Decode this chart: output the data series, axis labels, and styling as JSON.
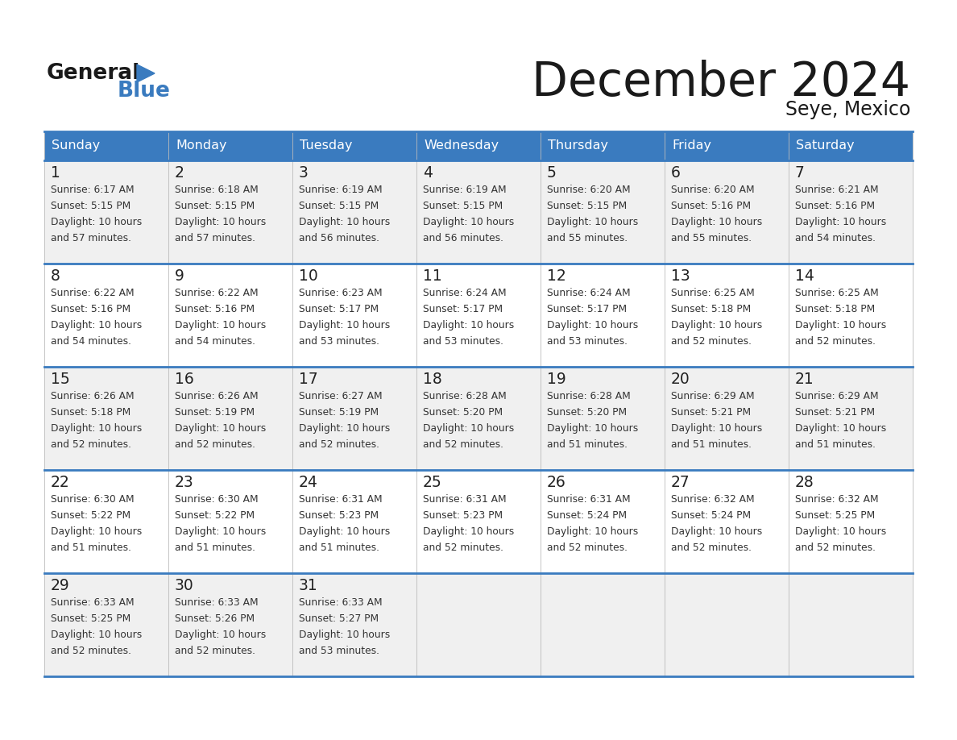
{
  "title": "December 2024",
  "subtitle": "Seye, Mexico",
  "header_color": "#3a7bbf",
  "header_text_color": "#ffffff",
  "border_color": "#2b6cb0",
  "text_color": "#333333",
  "days_of_week": [
    "Sunday",
    "Monday",
    "Tuesday",
    "Wednesday",
    "Thursday",
    "Friday",
    "Saturday"
  ],
  "weeks": [
    [
      {
        "day": 1,
        "sunrise": "6:17 AM",
        "sunset": "5:15 PM",
        "daylight_hours": 10,
        "daylight_minutes": 57
      },
      {
        "day": 2,
        "sunrise": "6:18 AM",
        "sunset": "5:15 PM",
        "daylight_hours": 10,
        "daylight_minutes": 57
      },
      {
        "day": 3,
        "sunrise": "6:19 AM",
        "sunset": "5:15 PM",
        "daylight_hours": 10,
        "daylight_minutes": 56
      },
      {
        "day": 4,
        "sunrise": "6:19 AM",
        "sunset": "5:15 PM",
        "daylight_hours": 10,
        "daylight_minutes": 56
      },
      {
        "day": 5,
        "sunrise": "6:20 AM",
        "sunset": "5:15 PM",
        "daylight_hours": 10,
        "daylight_minutes": 55
      },
      {
        "day": 6,
        "sunrise": "6:20 AM",
        "sunset": "5:16 PM",
        "daylight_hours": 10,
        "daylight_minutes": 55
      },
      {
        "day": 7,
        "sunrise": "6:21 AM",
        "sunset": "5:16 PM",
        "daylight_hours": 10,
        "daylight_minutes": 54
      }
    ],
    [
      {
        "day": 8,
        "sunrise": "6:22 AM",
        "sunset": "5:16 PM",
        "daylight_hours": 10,
        "daylight_minutes": 54
      },
      {
        "day": 9,
        "sunrise": "6:22 AM",
        "sunset": "5:16 PM",
        "daylight_hours": 10,
        "daylight_minutes": 54
      },
      {
        "day": 10,
        "sunrise": "6:23 AM",
        "sunset": "5:17 PM",
        "daylight_hours": 10,
        "daylight_minutes": 53
      },
      {
        "day": 11,
        "sunrise": "6:24 AM",
        "sunset": "5:17 PM",
        "daylight_hours": 10,
        "daylight_minutes": 53
      },
      {
        "day": 12,
        "sunrise": "6:24 AM",
        "sunset": "5:17 PM",
        "daylight_hours": 10,
        "daylight_minutes": 53
      },
      {
        "day": 13,
        "sunrise": "6:25 AM",
        "sunset": "5:18 PM",
        "daylight_hours": 10,
        "daylight_minutes": 52
      },
      {
        "day": 14,
        "sunrise": "6:25 AM",
        "sunset": "5:18 PM",
        "daylight_hours": 10,
        "daylight_minutes": 52
      }
    ],
    [
      {
        "day": 15,
        "sunrise": "6:26 AM",
        "sunset": "5:18 PM",
        "daylight_hours": 10,
        "daylight_minutes": 52
      },
      {
        "day": 16,
        "sunrise": "6:26 AM",
        "sunset": "5:19 PM",
        "daylight_hours": 10,
        "daylight_minutes": 52
      },
      {
        "day": 17,
        "sunrise": "6:27 AM",
        "sunset": "5:19 PM",
        "daylight_hours": 10,
        "daylight_minutes": 52
      },
      {
        "day": 18,
        "sunrise": "6:28 AM",
        "sunset": "5:20 PM",
        "daylight_hours": 10,
        "daylight_minutes": 52
      },
      {
        "day": 19,
        "sunrise": "6:28 AM",
        "sunset": "5:20 PM",
        "daylight_hours": 10,
        "daylight_minutes": 51
      },
      {
        "day": 20,
        "sunrise": "6:29 AM",
        "sunset": "5:21 PM",
        "daylight_hours": 10,
        "daylight_minutes": 51
      },
      {
        "day": 21,
        "sunrise": "6:29 AM",
        "sunset": "5:21 PM",
        "daylight_hours": 10,
        "daylight_minutes": 51
      }
    ],
    [
      {
        "day": 22,
        "sunrise": "6:30 AM",
        "sunset": "5:22 PM",
        "daylight_hours": 10,
        "daylight_minutes": 51
      },
      {
        "day": 23,
        "sunrise": "6:30 AM",
        "sunset": "5:22 PM",
        "daylight_hours": 10,
        "daylight_minutes": 51
      },
      {
        "day": 24,
        "sunrise": "6:31 AM",
        "sunset": "5:23 PM",
        "daylight_hours": 10,
        "daylight_minutes": 51
      },
      {
        "day": 25,
        "sunrise": "6:31 AM",
        "sunset": "5:23 PM",
        "daylight_hours": 10,
        "daylight_minutes": 52
      },
      {
        "day": 26,
        "sunrise": "6:31 AM",
        "sunset": "5:24 PM",
        "daylight_hours": 10,
        "daylight_minutes": 52
      },
      {
        "day": 27,
        "sunrise": "6:32 AM",
        "sunset": "5:24 PM",
        "daylight_hours": 10,
        "daylight_minutes": 52
      },
      {
        "day": 28,
        "sunrise": "6:32 AM",
        "sunset": "5:25 PM",
        "daylight_hours": 10,
        "daylight_minutes": 52
      }
    ],
    [
      {
        "day": 29,
        "sunrise": "6:33 AM",
        "sunset": "5:25 PM",
        "daylight_hours": 10,
        "daylight_minutes": 52
      },
      {
        "day": 30,
        "sunrise": "6:33 AM",
        "sunset": "5:26 PM",
        "daylight_hours": 10,
        "daylight_minutes": 52
      },
      {
        "day": 31,
        "sunrise": "6:33 AM",
        "sunset": "5:27 PM",
        "daylight_hours": 10,
        "daylight_minutes": 53
      },
      null,
      null,
      null,
      null
    ]
  ]
}
